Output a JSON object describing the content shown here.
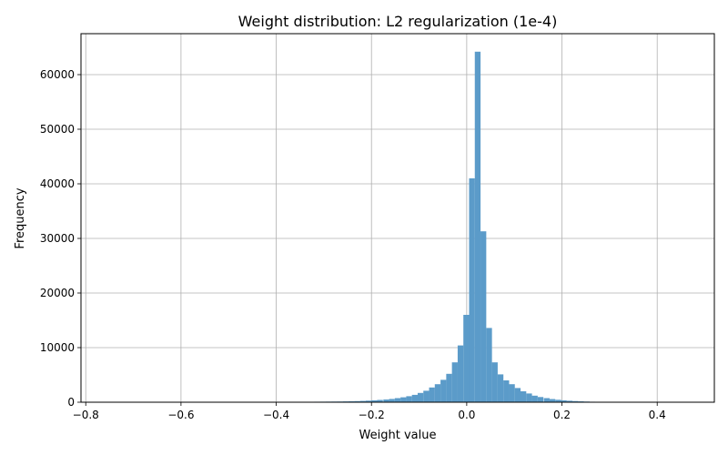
{
  "chart_data": {
    "type": "bar",
    "title": "Weight distribution: L2 regularization (1e-4)",
    "xlabel": "Weight value",
    "ylabel": "Frequency",
    "xlim": [
      -0.81,
      0.52
    ],
    "ylim": [
      0,
      67500
    ],
    "xticks": [
      -0.8,
      -0.6,
      -0.4,
      -0.2,
      0.0,
      0.2,
      0.4
    ],
    "xtick_labels": [
      "−0.8",
      "−0.6",
      "−0.4",
      "−0.2",
      "0.0",
      "0.2",
      "0.4"
    ],
    "yticks": [
      0,
      10000,
      20000,
      30000,
      40000,
      50000,
      60000
    ],
    "ytick_labels": [
      "0",
      "10000",
      "20000",
      "30000",
      "40000",
      "50000",
      "60000"
    ],
    "grid": true,
    "bar_color": "#5b9bc9",
    "bin_width": 0.01206,
    "bins": [
      {
        "x": -0.35,
        "count": 60
      },
      {
        "x": -0.338,
        "count": 70
      },
      {
        "x": -0.326,
        "count": 80
      },
      {
        "x": -0.314,
        "count": 90
      },
      {
        "x": -0.302,
        "count": 100
      },
      {
        "x": -0.29,
        "count": 110
      },
      {
        "x": -0.278,
        "count": 120
      },
      {
        "x": -0.266,
        "count": 130
      },
      {
        "x": -0.254,
        "count": 150
      },
      {
        "x": -0.242,
        "count": 170
      },
      {
        "x": -0.23,
        "count": 200
      },
      {
        "x": -0.218,
        "count": 240
      },
      {
        "x": -0.206,
        "count": 290
      },
      {
        "x": -0.194,
        "count": 350
      },
      {
        "x": -0.182,
        "count": 420
      },
      {
        "x": -0.169,
        "count": 500
      },
      {
        "x": -0.157,
        "count": 600
      },
      {
        "x": -0.145,
        "count": 750
      },
      {
        "x": -0.133,
        "count": 900
      },
      {
        "x": -0.121,
        "count": 1100
      },
      {
        "x": -0.109,
        "count": 1350
      },
      {
        "x": -0.097,
        "count": 1700
      },
      {
        "x": -0.085,
        "count": 2100
      },
      {
        "x": -0.073,
        "count": 2700
      },
      {
        "x": -0.061,
        "count": 3300
      },
      {
        "x": -0.049,
        "count": 4100
      },
      {
        "x": -0.037,
        "count": 5200
      },
      {
        "x": -0.025,
        "count": 7300
      },
      {
        "x": -0.013,
        "count": 10400
      },
      {
        "x": -0.001,
        "count": 16000
      },
      {
        "x": 0.011,
        "count": 41000
      },
      {
        "x": 0.023,
        "count": 64200
      },
      {
        "x": 0.035,
        "count": 31300
      },
      {
        "x": 0.047,
        "count": 13600
      },
      {
        "x": 0.059,
        "count": 7300
      },
      {
        "x": 0.071,
        "count": 5100
      },
      {
        "x": 0.083,
        "count": 4000
      },
      {
        "x": 0.095,
        "count": 3300
      },
      {
        "x": 0.107,
        "count": 2600
      },
      {
        "x": 0.119,
        "count": 2000
      },
      {
        "x": 0.131,
        "count": 1600
      },
      {
        "x": 0.143,
        "count": 1200
      },
      {
        "x": 0.155,
        "count": 950
      },
      {
        "x": 0.168,
        "count": 750
      },
      {
        "x": 0.18,
        "count": 580
      },
      {
        "x": 0.192,
        "count": 450
      },
      {
        "x": 0.204,
        "count": 350
      },
      {
        "x": 0.216,
        "count": 270
      },
      {
        "x": 0.228,
        "count": 210
      },
      {
        "x": 0.24,
        "count": 160
      },
      {
        "x": 0.252,
        "count": 120
      },
      {
        "x": 0.264,
        "count": 90
      },
      {
        "x": 0.276,
        "count": 60
      }
    ]
  }
}
